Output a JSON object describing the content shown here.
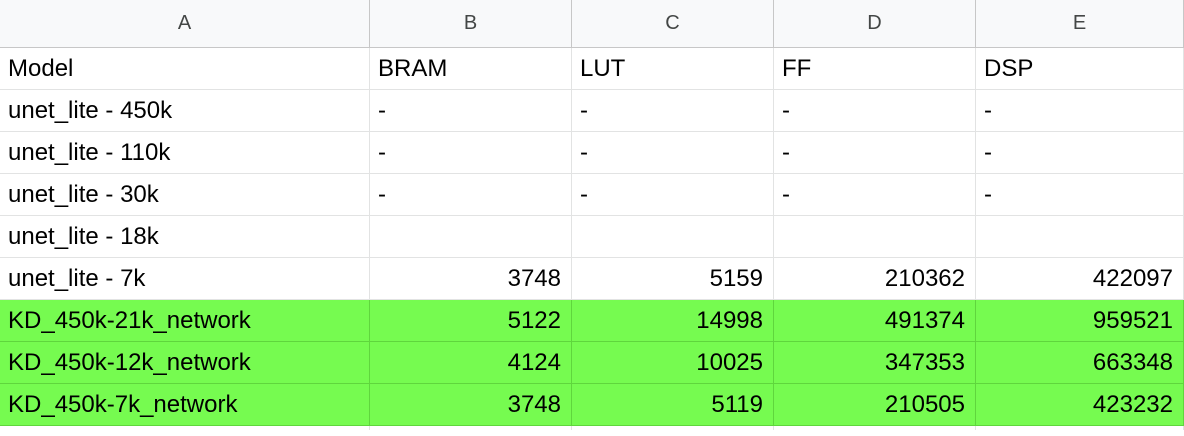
{
  "columns": [
    "A",
    "B",
    "C",
    "D",
    "E"
  ],
  "colors": {
    "highlight": "#76fb50",
    "header_bg": "#f8f9fa",
    "gridline": "#e2e3e3"
  },
  "rows": [
    {
      "cells": [
        "Model",
        "BRAM",
        "LUT",
        "FF",
        "DSP"
      ],
      "numeric": false,
      "highlight": false
    },
    {
      "cells": [
        "unet_lite - 450k",
        "-",
        "-",
        "-",
        "-"
      ],
      "numeric": false,
      "highlight": false
    },
    {
      "cells": [
        "unet_lite - 110k",
        "-",
        "-",
        "-",
        "-"
      ],
      "numeric": false,
      "highlight": false
    },
    {
      "cells": [
        "unet_lite - 30k",
        "-",
        "-",
        "-",
        "-"
      ],
      "numeric": false,
      "highlight": false
    },
    {
      "cells": [
        "unet_lite - 18k",
        "",
        "",
        "",
        ""
      ],
      "numeric": false,
      "highlight": false
    },
    {
      "cells": [
        "unet_lite - 7k",
        "3748",
        "5159",
        "210362",
        "422097"
      ],
      "numeric": true,
      "highlight": false
    },
    {
      "cells": [
        "KD_450k-21k_network",
        "5122",
        "14998",
        "491374",
        "959521"
      ],
      "numeric": true,
      "highlight": true
    },
    {
      "cells": [
        "KD_450k-12k_network",
        "4124",
        "10025",
        "347353",
        "663348"
      ],
      "numeric": true,
      "highlight": true
    },
    {
      "cells": [
        "KD_450k-7k_network",
        "3748",
        "5119",
        "210505",
        "423232"
      ],
      "numeric": true,
      "highlight": true
    }
  ]
}
